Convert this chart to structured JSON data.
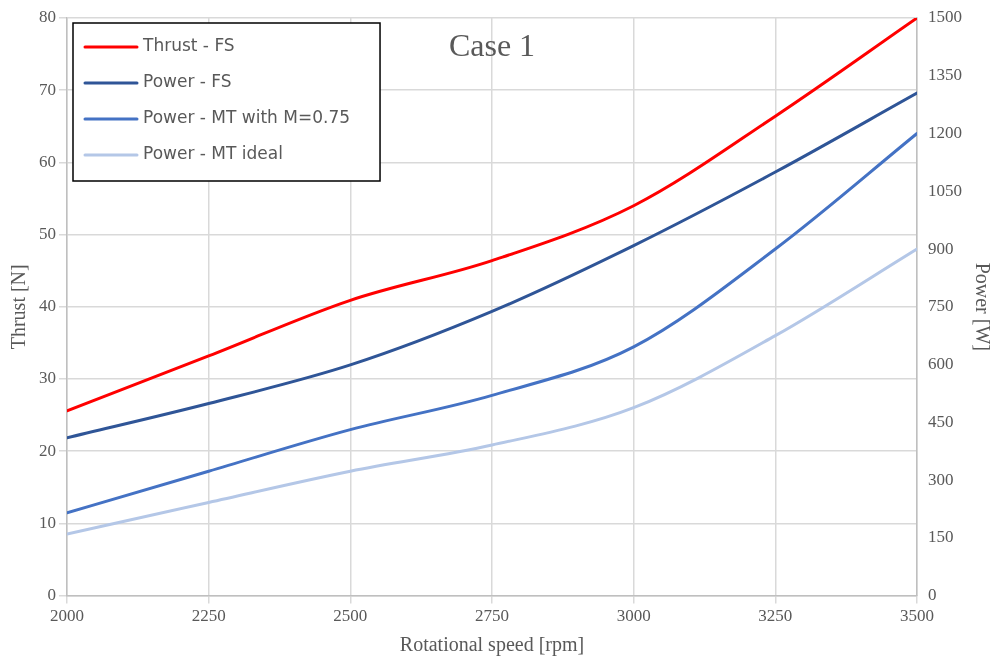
{
  "chart_data": {
    "type": "line",
    "title": "Case 1",
    "xlabel": "Rotational speed [rpm]",
    "ylabel": "Thrust [N]",
    "y2label": "Power [W]",
    "x": [
      2000,
      2250,
      2500,
      2750,
      3000,
      3250,
      3500
    ],
    "series": [
      {
        "name": "Thrust - FS",
        "color": "#ff0000",
        "values": [
          25.6,
          33.2,
          40.9,
          46.4,
          54,
          66.4,
          80
        ]
      },
      {
        "name": "Power - FS",
        "color": "#2f5597",
        "axis": "y2",
        "values": [
          410,
          499,
          599,
          738,
          909,
          1100,
          1305
        ]
      },
      {
        "name": "Power - MT with M=0.75",
        "color": "#4472c4",
        "axis": "y2",
        "values": [
          215,
          323,
          431,
          520,
          646,
          900,
          1200
        ]
      },
      {
        "name": "Power - MT ideal",
        "color": "#b4c7e7",
        "axis": "y2",
        "values": [
          160,
          242,
          323,
          391,
          488,
          675,
          900
        ]
      }
    ],
    "xlim": [
      2000,
      3500
    ],
    "xticks": [
      2000,
      2250,
      2500,
      2750,
      3000,
      3250,
      3500
    ],
    "ylim": [
      0,
      80
    ],
    "yticks": [
      0,
      10,
      20,
      30,
      40,
      50,
      60,
      70,
      80
    ],
    "y2lim": [
      0,
      1500
    ],
    "y2ticks": [
      0,
      150,
      300,
      450,
      600,
      750,
      900,
      1050,
      1200,
      1350,
      1500
    ],
    "grid": true,
    "legend": "top left",
    "marker": "none",
    "line_style": "solid"
  }
}
